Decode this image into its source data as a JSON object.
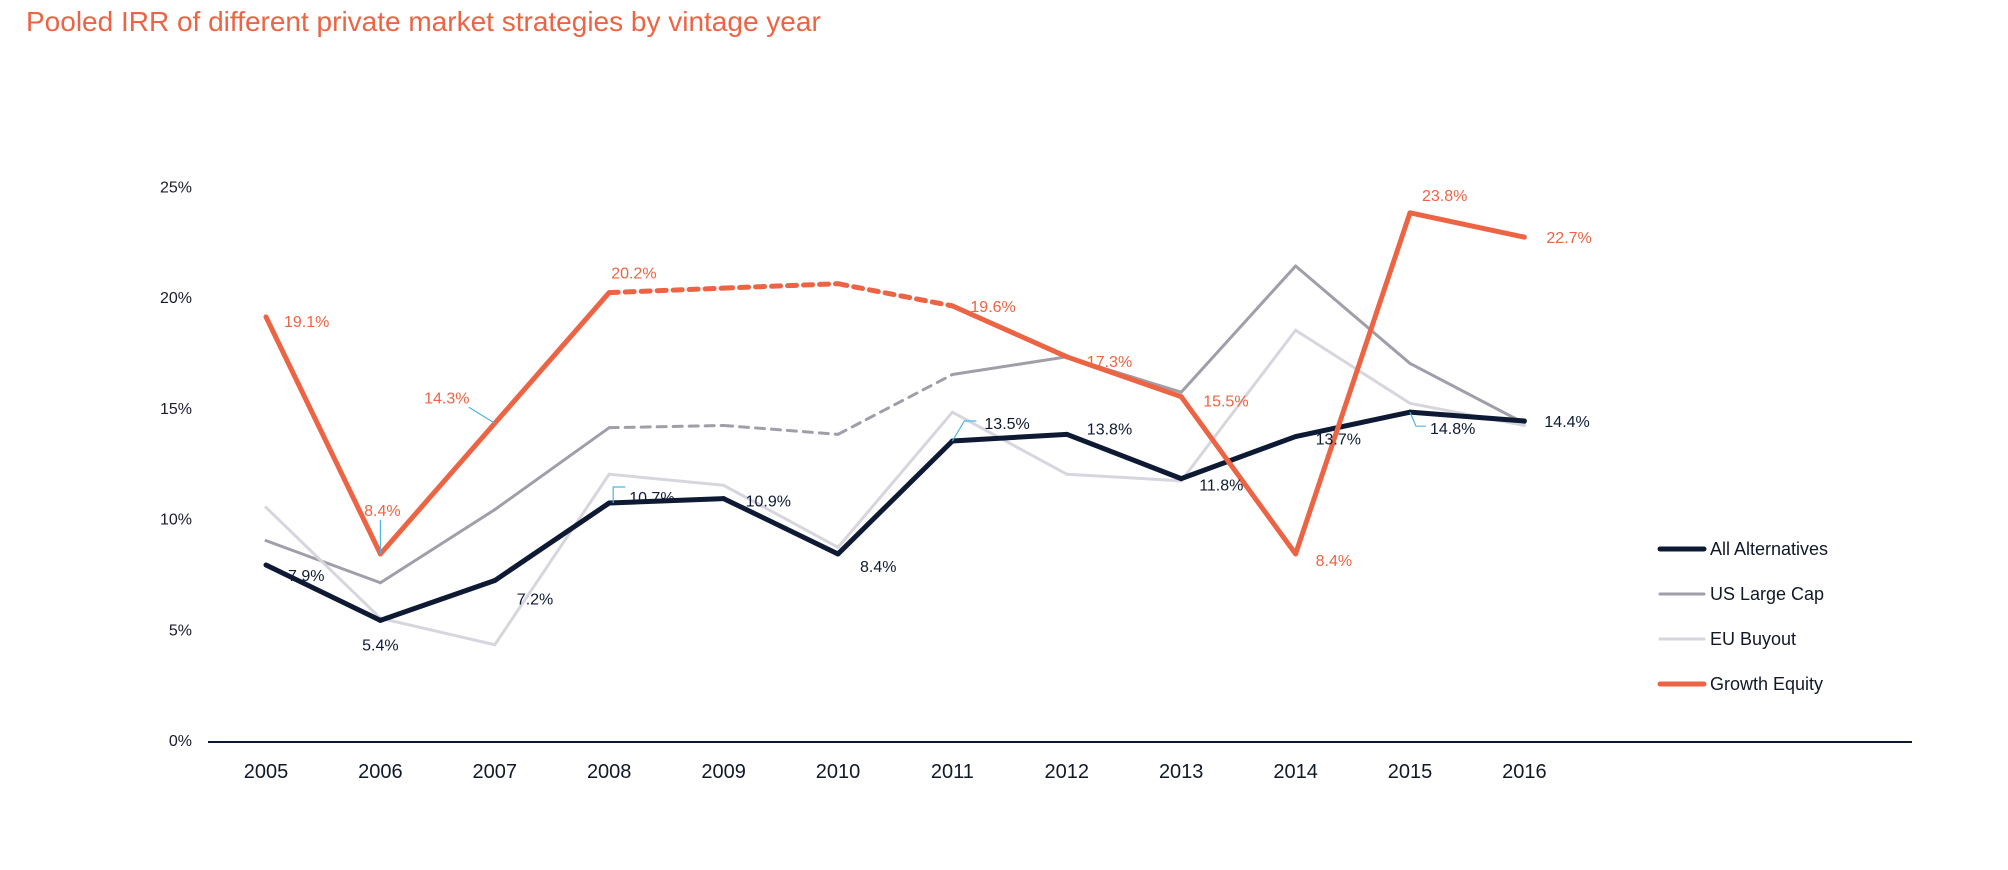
{
  "chart_data": {
    "type": "line",
    "title": "Pooled IRR of different private market strategies by vintage year",
    "xlabel": "",
    "ylabel": "",
    "ylim": [
      0,
      25
    ],
    "yticks": [
      "0%",
      "5%",
      "10%",
      "15%",
      "20%",
      "25%"
    ],
    "categories": [
      "2005",
      "2006",
      "2007",
      "2008",
      "2009",
      "2010",
      "2011",
      "2012",
      "2013",
      "2014",
      "2015",
      "2016"
    ],
    "legend_position": "right",
    "series": [
      {
        "name": "US Large Cap",
        "color": "#a09ea8",
        "values": [
          9.0,
          7.1,
          10.4,
          14.1,
          14.2,
          13.8,
          16.5,
          17.3,
          15.7,
          21.4,
          17.0,
          14.3
        ],
        "dashed_segments": [
          3,
          4,
          5
        ],
        "labels": []
      },
      {
        "name": "EU Buyout",
        "color": "#d7d6de",
        "values": [
          10.5,
          5.5,
          4.3,
          12.0,
          11.5,
          8.7,
          14.8,
          12.0,
          11.7,
          18.5,
          15.2,
          14.2
        ],
        "dashed_segments": [],
        "labels": []
      },
      {
        "name": "All Alternatives",
        "color": "#0e1a33",
        "values": [
          7.9,
          5.4,
          7.2,
          10.7,
          10.9,
          8.4,
          13.5,
          13.8,
          11.8,
          13.7,
          14.8,
          14.4
        ],
        "dashed_segments": [],
        "labels": [
          "7.9%",
          "5.4%",
          "7.2%",
          "10.7%",
          "10.9%",
          "8.4%",
          "13.5%",
          "13.8%",
          "11.8%",
          "13.7%",
          "14.8%",
          "14.4%"
        ]
      },
      {
        "name": "Growth Equity",
        "color": "#ec6444",
        "values": [
          19.1,
          8.4,
          14.3,
          20.2,
          20.4,
          20.6,
          19.6,
          17.3,
          15.5,
          8.4,
          23.8,
          22.7
        ],
        "dashed_segments": [
          3,
          4,
          5
        ],
        "labels": [
          "19.1%",
          "8.4%",
          "14.3%",
          "20.2%",
          null,
          null,
          "19.6%",
          "17.3%",
          "15.5%",
          "8.4%",
          "23.8%",
          "22.7%"
        ]
      }
    ],
    "legend": [
      "All Alternatives",
      "US Large Cap",
      "EU Buyout",
      "Growth Equity"
    ]
  }
}
